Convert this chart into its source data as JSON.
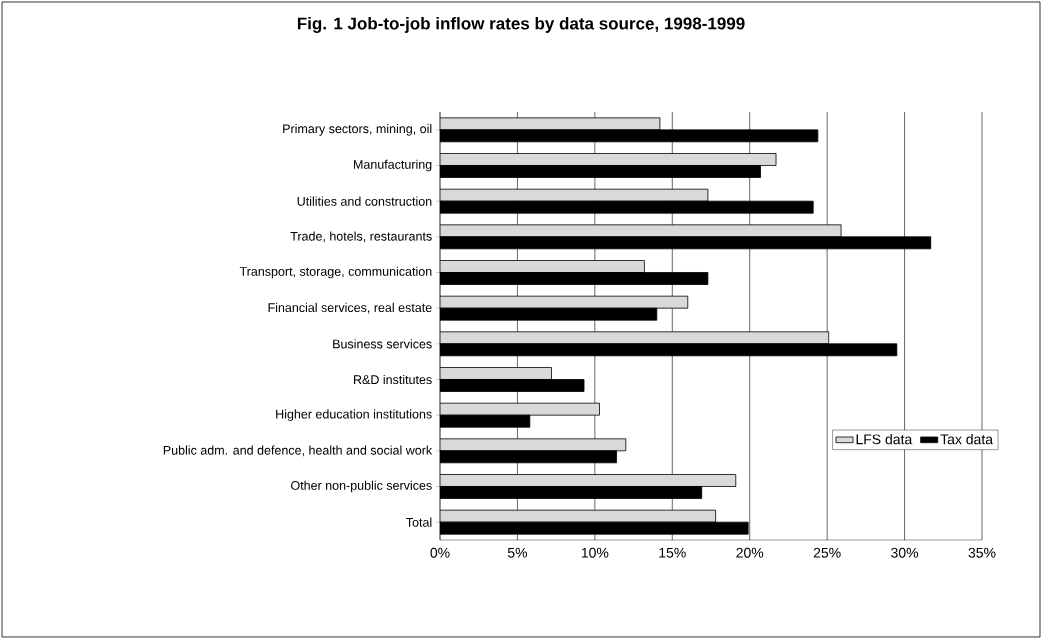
{
  "chart_data": {
    "type": "bar",
    "orientation": "horizontal",
    "title": "Fig. 1 Job-to-job inflow rates by data source, 1998-1999",
    "categories": [
      "Primary sectors, mining, oil",
      "Manufacturing",
      "Utilities and construction",
      "Trade, hotels, restaurants",
      "Transport, storage, communication",
      "Financial services, real estate",
      "Business services",
      "R&D institutes",
      "Higher education institutions",
      "Public adm. and defence, health and social work",
      "Other non-public services",
      "Total"
    ],
    "series": [
      {
        "name": "LFS data",
        "color": "#d9d9d9",
        "values": [
          14.2,
          21.7,
          17.3,
          25.9,
          13.2,
          16.0,
          25.1,
          7.2,
          10.3,
          12.0,
          19.1,
          17.8
        ]
      },
      {
        "name": "Tax data",
        "color": "#000000",
        "values": [
          24.4,
          20.7,
          24.1,
          31.7,
          17.3,
          14.0,
          29.5,
          9.3,
          5.8,
          11.4,
          16.9,
          19.9
        ]
      }
    ],
    "xlim": [
      0,
      35
    ],
    "xticks": [
      {
        "value": 0,
        "label": "0%"
      },
      {
        "value": 5,
        "label": "5%"
      },
      {
        "value": 10,
        "label": "10%"
      },
      {
        "value": 15,
        "label": "15%"
      },
      {
        "value": 20,
        "label": "20%"
      },
      {
        "value": 25,
        "label": "25%"
      },
      {
        "value": 30,
        "label": "30%"
      },
      {
        "value": 35,
        "label": "35%"
      }
    ],
    "grid": "x",
    "legend": "right"
  }
}
